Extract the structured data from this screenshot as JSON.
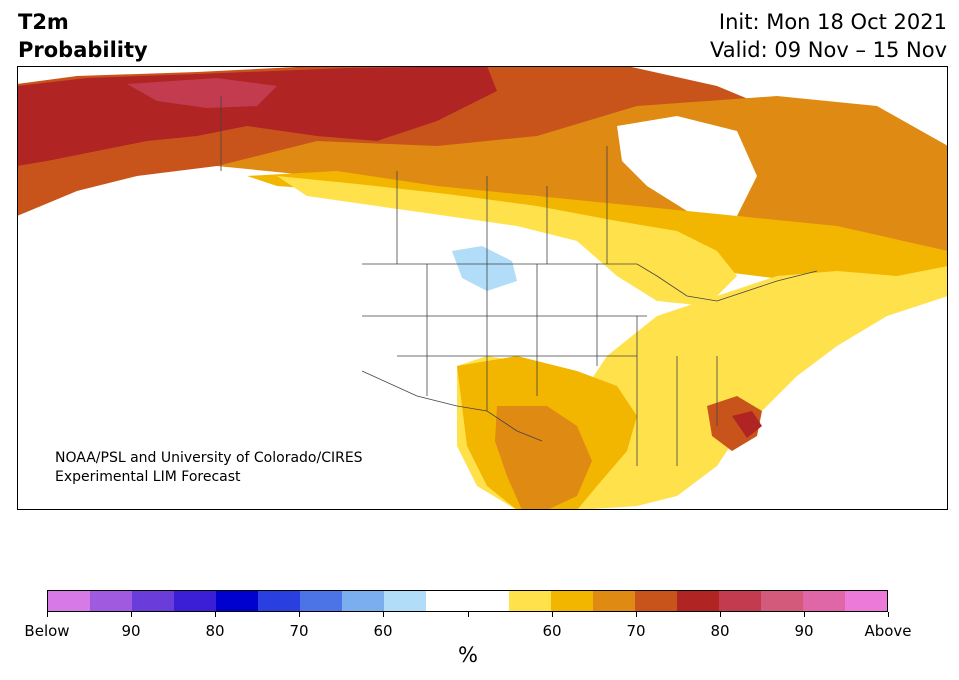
{
  "header": {
    "title_line1": "T2m",
    "title_line2": "Probability",
    "init": "Init: Mon 18 Oct 2021",
    "valid": "Valid: 09 Nov – 15 Nov"
  },
  "credit": {
    "line1": "NOAA/PSL and University of Colorado/CIRES",
    "line2": "Experimental LIM Forecast"
  },
  "colorbar": {
    "colors": [
      "#d77ae8",
      "#a05ae0",
      "#6a3ddb",
      "#3b1fd6",
      "#0000cf",
      "#2a3fe0",
      "#4c74e6",
      "#7aaeef",
      "#b1ddf8",
      "#ffffff",
      "#ffffff",
      "#ffe14c",
      "#f2b600",
      "#df8a12",
      "#c8541b",
      "#b12424",
      "#c23b4e",
      "#d35a7a",
      "#df67a7",
      "#ec7ad8"
    ],
    "labels": [
      "Below",
      "90",
      "80",
      "70",
      "60",
      "",
      "60",
      "70",
      "80",
      "90",
      "Above"
    ],
    "unit": "%"
  },
  "map": {
    "region": "North America",
    "category_colors": {
      "above_50": "#ffe14c",
      "above_60": "#f2b600",
      "above_70": "#df8a12",
      "above_80": "#c8541b",
      "above_90": "#b12424",
      "above_95": "#c23b4e",
      "below_60": "#b1ddf8"
    }
  }
}
